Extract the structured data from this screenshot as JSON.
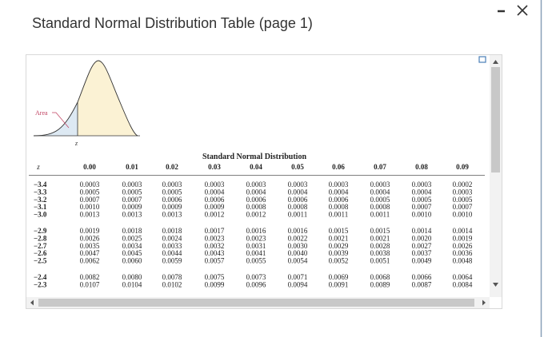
{
  "dialog": {
    "title": "Standard Normal Distribution Table (page 1)"
  },
  "figure": {
    "area_label": "Area",
    "z_label": "z"
  },
  "table": {
    "caption": "Standard Normal Distribution",
    "header": [
      "z",
      "0.00",
      "0.01",
      "0.02",
      "0.03",
      "0.04",
      "0.05",
      "0.06",
      "0.07",
      "0.08",
      "0.09"
    ],
    "rows": [
      [
        "−3.4",
        "0.0003",
        "0.0003",
        "0.0003",
        "0.0003",
        "0.0003",
        "0.0003",
        "0.0003",
        "0.0003",
        "0.0003",
        "0.0002"
      ],
      [
        "−3.3",
        "0.0005",
        "0.0005",
        "0.0005",
        "0.0004",
        "0.0004",
        "0.0004",
        "0.0004",
        "0.0004",
        "0.0004",
        "0.0003"
      ],
      [
        "−3.2",
        "0.0007",
        "0.0007",
        "0.0006",
        "0.0006",
        "0.0006",
        "0.0006",
        "0.0006",
        "0.0005",
        "0.0005",
        "0.0005"
      ],
      [
        "−3.1",
        "0.0010",
        "0.0009",
        "0.0009",
        "0.0009",
        "0.0008",
        "0.0008",
        "0.0008",
        "0.0008",
        "0.0007",
        "0.0007"
      ],
      [
        "−3.0",
        "0.0013",
        "0.0013",
        "0.0013",
        "0.0012",
        "0.0012",
        "0.0011",
        "0.0011",
        "0.0011",
        "0.0010",
        "0.0010"
      ],
      [
        "−2.9",
        "0.0019",
        "0.0018",
        "0.0018",
        "0.0017",
        "0.0016",
        "0.0016",
        "0.0015",
        "0.0015",
        "0.0014",
        "0.0014"
      ],
      [
        "−2.8",
        "0.0026",
        "0.0025",
        "0.0024",
        "0.0023",
        "0.0023",
        "0.0022",
        "0.0021",
        "0.0021",
        "0.0020",
        "0.0019"
      ],
      [
        "−2.7",
        "0.0035",
        "0.0034",
        "0.0033",
        "0.0032",
        "0.0031",
        "0.0030",
        "0.0029",
        "0.0028",
        "0.0027",
        "0.0026"
      ],
      [
        "−2.6",
        "0.0047",
        "0.0045",
        "0.0044",
        "0.0043",
        "0.0041",
        "0.0040",
        "0.0039",
        "0.0038",
        "0.0037",
        "0.0036"
      ],
      [
        "−2.5",
        "0.0062",
        "0.0060",
        "0.0059",
        "0.0057",
        "0.0055",
        "0.0054",
        "0.0052",
        "0.0051",
        "0.0049",
        "0.0048"
      ],
      [
        "−2.4",
        "0.0082",
        "0.0080",
        "0.0078",
        "0.0075",
        "0.0073",
        "0.0071",
        "0.0069",
        "0.0068",
        "0.0066",
        "0.0064"
      ],
      [
        "−2.3",
        "0.0107",
        "0.0104",
        "0.0102",
        "0.0099",
        "0.0096",
        "0.0094",
        "0.0091",
        "0.0089",
        "0.0087",
        "0.0084"
      ]
    ]
  }
}
